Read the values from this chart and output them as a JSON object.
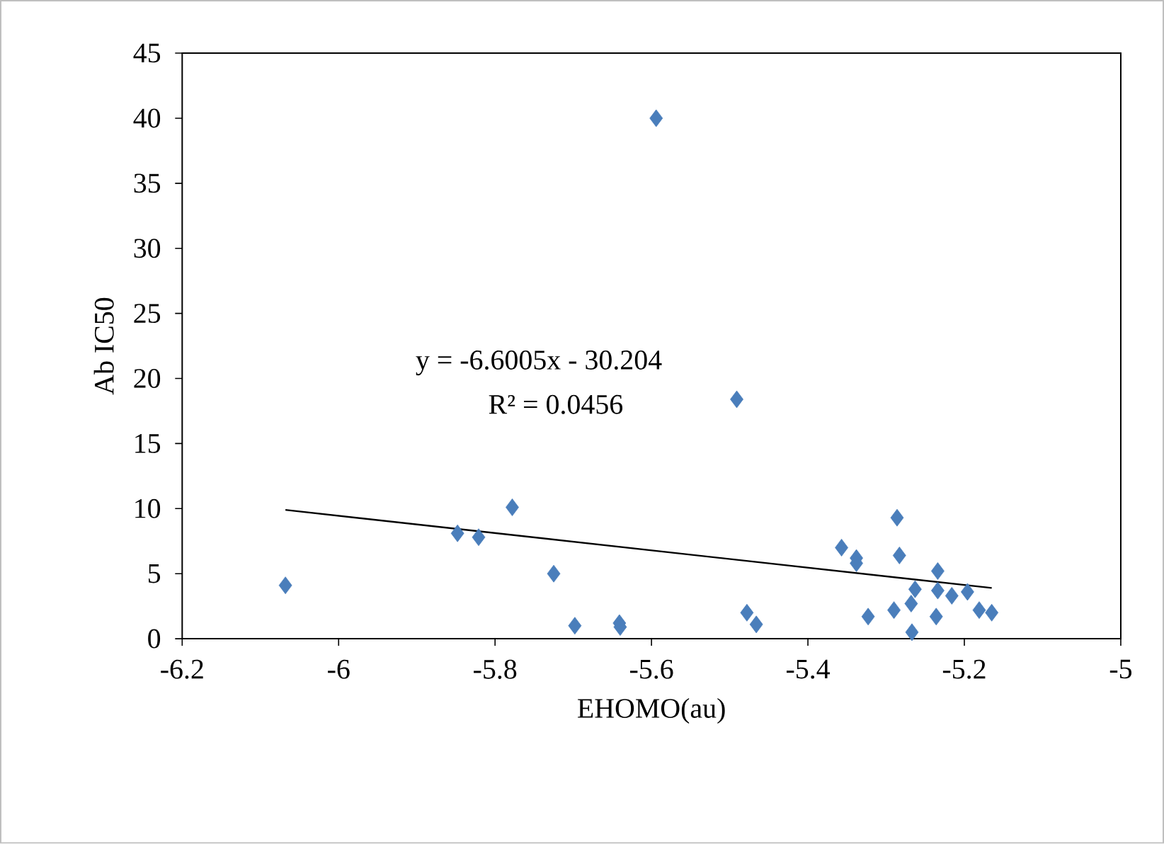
{
  "chart_data": {
    "type": "scatter",
    "xlabel": "EHOMO(au)",
    "ylabel": "Ab IC50",
    "xlim": [
      -6.2,
      -5
    ],
    "xticks": [
      -6.2,
      -6,
      -5.8,
      -5.6,
      -5.4,
      -5.2,
      -5
    ],
    "ylim": [
      0,
      45
    ],
    "yticks": [
      0,
      5,
      10,
      15,
      20,
      25,
      30,
      35,
      40,
      45
    ],
    "annotations": [
      "y = -6.6005x - 30.204",
      "R² = 0.0456"
    ],
    "series": [
      {
        "marker": "diamond",
        "color": "#4a7ebb",
        "x": [
          -6.068,
          -5.848,
          -5.821,
          -5.778,
          -5.725,
          -5.698,
          -5.641,
          -5.64,
          -5.594,
          -5.491,
          -5.478,
          -5.466,
          -5.286,
          -5.357,
          -5.338,
          -5.338,
          -5.283,
          -5.234,
          -5.263,
          -5.234,
          -5.216,
          -5.196,
          -5.268,
          -5.29,
          -5.323,
          -5.236,
          -5.181,
          -5.165,
          -5.267
        ],
        "values": [
          4.1,
          8.1,
          7.8,
          10.1,
          5.0,
          1.0,
          1.2,
          0.9,
          40.0,
          18.4,
          2.0,
          1.1,
          9.3,
          7.0,
          6.2,
          5.8,
          6.4,
          5.2,
          3.8,
          3.7,
          3.3,
          3.6,
          2.7,
          2.2,
          1.7,
          1.7,
          2.2,
          2.0,
          0.5
        ]
      },
      {
        "type": "line",
        "color": "#000000",
        "x": [
          -6.068,
          -5.165
        ],
        "values": [
          9.9,
          3.9
        ]
      }
    ]
  }
}
